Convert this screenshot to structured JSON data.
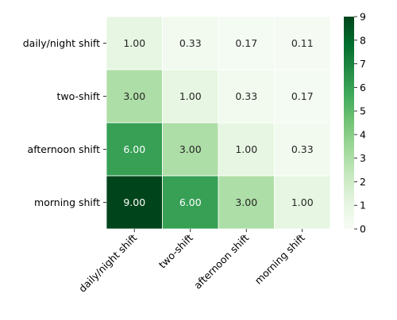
{
  "chart_data": {
    "type": "heatmap",
    "rows": [
      "daily/night shift",
      "two-shift",
      "afternoon shift",
      "morning shift"
    ],
    "columns": [
      "daily/night shift",
      "two-shift",
      "afternoon shift",
      "morning shift"
    ],
    "values": [
      [
        1.0,
        0.33,
        0.17,
        0.11
      ],
      [
        3.0,
        1.0,
        0.33,
        0.17
      ],
      [
        6.0,
        3.0,
        1.0,
        0.33
      ],
      [
        9.0,
        6.0,
        3.0,
        1.0
      ]
    ],
    "cell_labels": [
      [
        "1.00",
        "0.33",
        "0.17",
        "0.11"
      ],
      [
        "3.00",
        "1.00",
        "0.33",
        "0.17"
      ],
      [
        "6.00",
        "3.00",
        "1.00",
        "0.33"
      ],
      [
        "9.00",
        "6.00",
        "3.00",
        "1.00"
      ]
    ],
    "colorbar": {
      "min": 0,
      "max": 9,
      "ticks": [
        "0",
        "1",
        "2",
        "3",
        "4",
        "5",
        "6",
        "7",
        "8",
        "9"
      ]
    },
    "colormap": "Greens",
    "colors": {
      "low": "#f7fcf5",
      "high": "#00441b",
      "text_dark": "#262626",
      "text_light": "#ffffff",
      "cell_border": "#ffffff"
    },
    "title": "",
    "xlabel": "",
    "ylabel": ""
  }
}
